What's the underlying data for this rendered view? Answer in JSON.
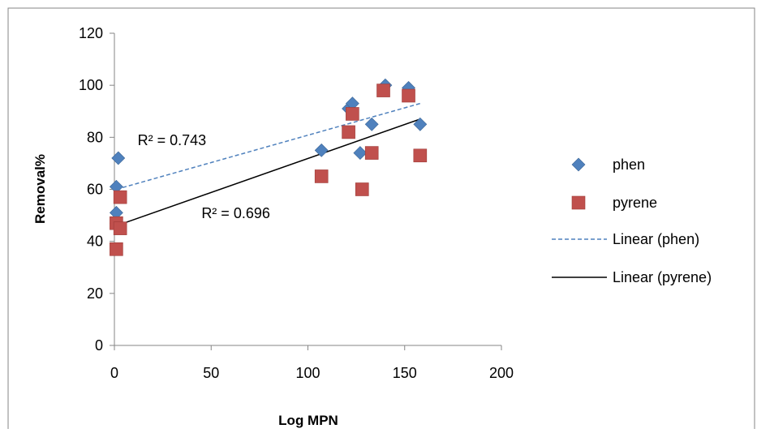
{
  "chart_data": {
    "type": "scatter",
    "xlabel": "Log MPN",
    "ylabel": "Removal%",
    "xlim": [
      0,
      200
    ],
    "ylim": [
      0,
      120
    ],
    "xticks": [
      0,
      50,
      100,
      150,
      200
    ],
    "yticks": [
      0,
      20,
      40,
      60,
      80,
      100,
      120
    ],
    "grid": false,
    "legend_position": "right",
    "series": [
      {
        "name": "phen",
        "color": "#4F81BD",
        "marker": "diamond",
        "points": [
          [
            2,
            72
          ],
          [
            1,
            61
          ],
          [
            1,
            51
          ],
          [
            1,
            47
          ],
          [
            107,
            75
          ],
          [
            121,
            91
          ],
          [
            123,
            93
          ],
          [
            127,
            74
          ],
          [
            133,
            85
          ],
          [
            140,
            100
          ],
          [
            152,
            99
          ],
          [
            158,
            85
          ]
        ]
      },
      {
        "name": "pyrene",
        "color": "#C0504D",
        "marker": "square",
        "points": [
          [
            3,
            57
          ],
          [
            1,
            47
          ],
          [
            3,
            45
          ],
          [
            1,
            37
          ],
          [
            107,
            65
          ],
          [
            121,
            82
          ],
          [
            123,
            89
          ],
          [
            128,
            60
          ],
          [
            133,
            74
          ],
          [
            139,
            98
          ],
          [
            152,
            96
          ],
          [
            158,
            73
          ]
        ]
      }
    ],
    "trendlines": [
      {
        "name": "Linear (phen)",
        "color": "#4F81BD",
        "style": "dashed",
        "from": [
          1,
          60
        ],
        "to": [
          158,
          93
        ],
        "r2_label": "R² = 0.743",
        "label_at": [
          12,
          77
        ]
      },
      {
        "name": "Linear (pyrene)",
        "color": "#000000",
        "style": "solid",
        "from": [
          1,
          46
        ],
        "to": [
          158,
          87
        ],
        "r2_label": "R² = 0.696",
        "label_at": [
          45,
          49
        ]
      }
    ]
  }
}
